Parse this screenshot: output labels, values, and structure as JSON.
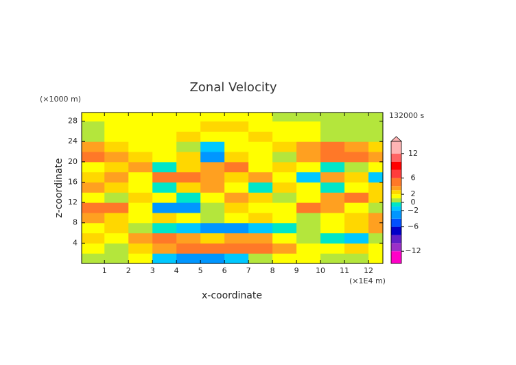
{
  "chart_data": {
    "type": "contour",
    "title": "Zonal Velocity",
    "y_unit": "(×1000 m)",
    "x_unit": "(×1E4 m)",
    "time_label": "132000 s",
    "xlabel": "x-coordinate",
    "ylabel": "z-coordinate",
    "xlim": [
      0.05,
      12.6
    ],
    "ylim": [
      0,
      29.7
    ],
    "xticks": [
      1,
      2,
      3,
      4,
      5,
      6,
      7,
      8,
      9,
      10,
      11,
      12
    ],
    "yticks": [
      4,
      8,
      12,
      16,
      20,
      24,
      28
    ],
    "x": [
      0.5,
      1.5,
      2.5,
      3.5,
      4.5,
      5.5,
      6.5,
      7.5,
      8.5,
      9.5,
      10.5,
      11.5,
      12.5
    ],
    "z": [
      1,
      3,
      5,
      7,
      9,
      11,
      13,
      15,
      17,
      19,
      21,
      23,
      25,
      27,
      29
    ],
    "values": [
      [
        0,
        0,
        1,
        -2,
        -3,
        -4,
        -2,
        0,
        1,
        1,
        0,
        0,
        1
      ],
      [
        1,
        0,
        2,
        3,
        4,
        4,
        5,
        5,
        3,
        1,
        1,
        2,
        1
      ],
      [
        2,
        1,
        3,
        4,
        3,
        2,
        3,
        3,
        1,
        0,
        -1,
        -2,
        0
      ],
      [
        1,
        2,
        0,
        -1,
        -2,
        -3,
        -3,
        -2,
        -1,
        0,
        1,
        2,
        3
      ],
      [
        3,
        2,
        1,
        2,
        1,
        0,
        1,
        2,
        1,
        0,
        1,
        2,
        3
      ],
      [
        4,
        4,
        1,
        -3,
        -3,
        0,
        2,
        1,
        1,
        4,
        3,
        1,
        0
      ],
      [
        1,
        0,
        2,
        1,
        -1,
        1,
        3,
        2,
        0,
        1,
        3,
        4,
        2
      ],
      [
        3,
        2,
        1,
        -1,
        2,
        3,
        1,
        -1,
        2,
        1,
        -1,
        1,
        2
      ],
      [
        2,
        3,
        1,
        4,
        4,
        3,
        2,
        3,
        1,
        -2,
        3,
        2,
        -2
      ],
      [
        1,
        2,
        3,
        -1,
        2,
        3,
        4,
        1,
        2,
        1,
        -1,
        0,
        1
      ],
      [
        4,
        3,
        2,
        1,
        2,
        -3,
        2,
        1,
        0,
        3,
        4,
        4,
        3
      ],
      [
        3,
        2,
        1,
        1,
        0,
        -2,
        1,
        1,
        2,
        3,
        4,
        3,
        2
      ],
      [
        0,
        1,
        1,
        1,
        2,
        1,
        1,
        2,
        1,
        1,
        0,
        0,
        0
      ],
      [
        0,
        1,
        1,
        1,
        1,
        2,
        2,
        1,
        1,
        1,
        0,
        0,
        0
      ],
      [
        1,
        1,
        1,
        1,
        1,
        1,
        1,
        1,
        0,
        0,
        0,
        0,
        0
      ]
    ],
    "levels": [
      -15,
      -12,
      -10,
      -8,
      -6,
      -4,
      -2,
      -1,
      0,
      1,
      2,
      3,
      4,
      6,
      8,
      10,
      12,
      15
    ],
    "colors": [
      "#ff00c8",
      "#9b30c8",
      "#6020c8",
      "#0000c8",
      "#0050ff",
      "#0096ff",
      "#00c8ff",
      "#00e6c8",
      "#b4e63c",
      "#ffff00",
      "#ffd700",
      "#ffa020",
      "#ff7828",
      "#ff3c3c",
      "#ff0000",
      "#ff6464",
      "#ffb4b4"
    ],
    "cbar_ticks": [
      12,
      6,
      2,
      0,
      {
        "value": -2,
        "label": "−2"
      },
      {
        "value": -6,
        "label": "−6"
      },
      {
        "value": -12,
        "label": "−12"
      }
    ]
  }
}
